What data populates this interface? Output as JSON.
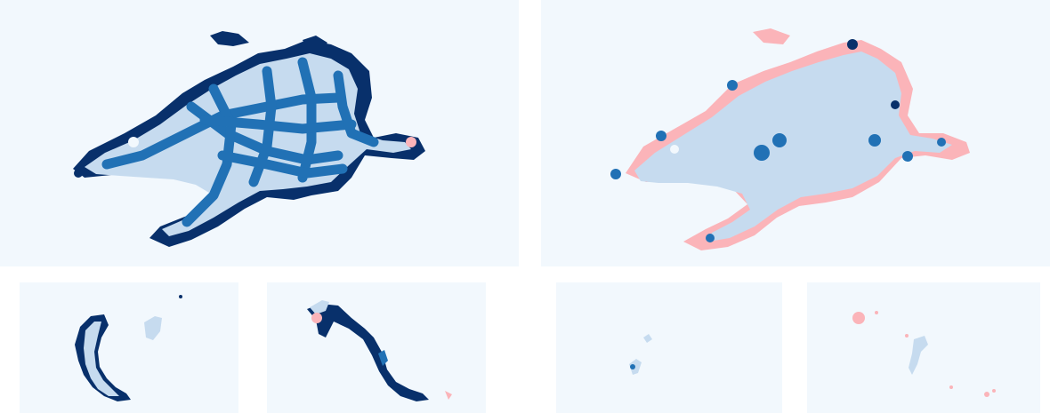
{
  "figure": {
    "panels": [
      {
        "id": "main-left",
        "kind": "segmentation-overlay"
      },
      {
        "id": "main-right",
        "kind": "segmentation-overlay"
      },
      {
        "id": "sub-1",
        "kind": "segmentation-overlay"
      },
      {
        "id": "sub-2",
        "kind": "segmentation-overlay"
      },
      {
        "id": "sub-3",
        "kind": "segmentation-overlay"
      },
      {
        "id": "sub-4",
        "kind": "segmentation-overlay"
      }
    ],
    "colors": {
      "background": "#f2f8fd",
      "light_blue": "#c6dbef",
      "medium_blue": "#2171b5",
      "dark_blue": "#08306b",
      "pink": "#fbb4b9"
    }
  }
}
